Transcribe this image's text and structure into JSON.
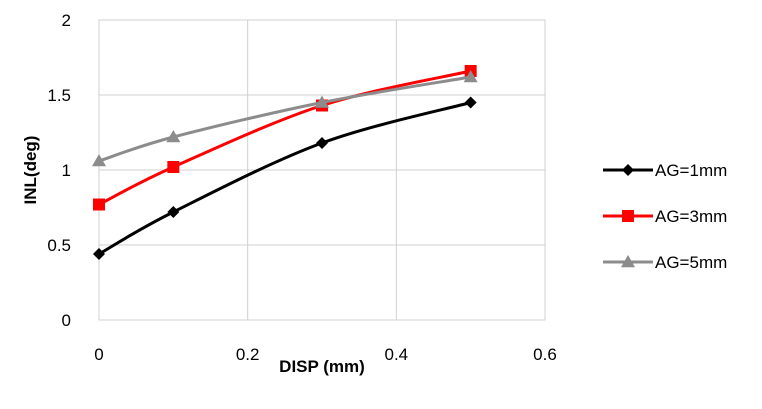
{
  "chart_data": {
    "type": "line",
    "xlabel": "DISP (mm)",
    "ylabel": "INL(deg)",
    "xlim": [
      0,
      0.6
    ],
    "ylim": [
      0,
      2
    ],
    "x_ticks": [
      0,
      0.2,
      0.4,
      0.6
    ],
    "y_ticks": [
      0,
      0.5,
      1,
      1.5,
      2
    ],
    "x_tick_labels": [
      "0",
      "0.2",
      "0.4",
      "0.6"
    ],
    "y_tick_labels": [
      "0",
      "0.5",
      "1",
      "1.5",
      "2"
    ],
    "grid": true,
    "legend_position": "right",
    "smooth": true,
    "series": [
      {
        "name": "AG=1mm",
        "color": "#000000",
        "marker": "diamond",
        "x": [
          0,
          0.1,
          0.3,
          0.5
        ],
        "y": [
          0.44,
          0.72,
          1.18,
          1.45
        ]
      },
      {
        "name": "AG=3mm",
        "color": "#ff0000",
        "marker": "square",
        "x": [
          0,
          0.1,
          0.3,
          0.5
        ],
        "y": [
          0.77,
          1.02,
          1.43,
          1.66
        ]
      },
      {
        "name": "AG=5mm",
        "color": "#8c8c8c",
        "marker": "triangle",
        "x": [
          0,
          0.1,
          0.3,
          0.5
        ],
        "y": [
          1.06,
          1.22,
          1.45,
          1.62
        ]
      }
    ]
  }
}
